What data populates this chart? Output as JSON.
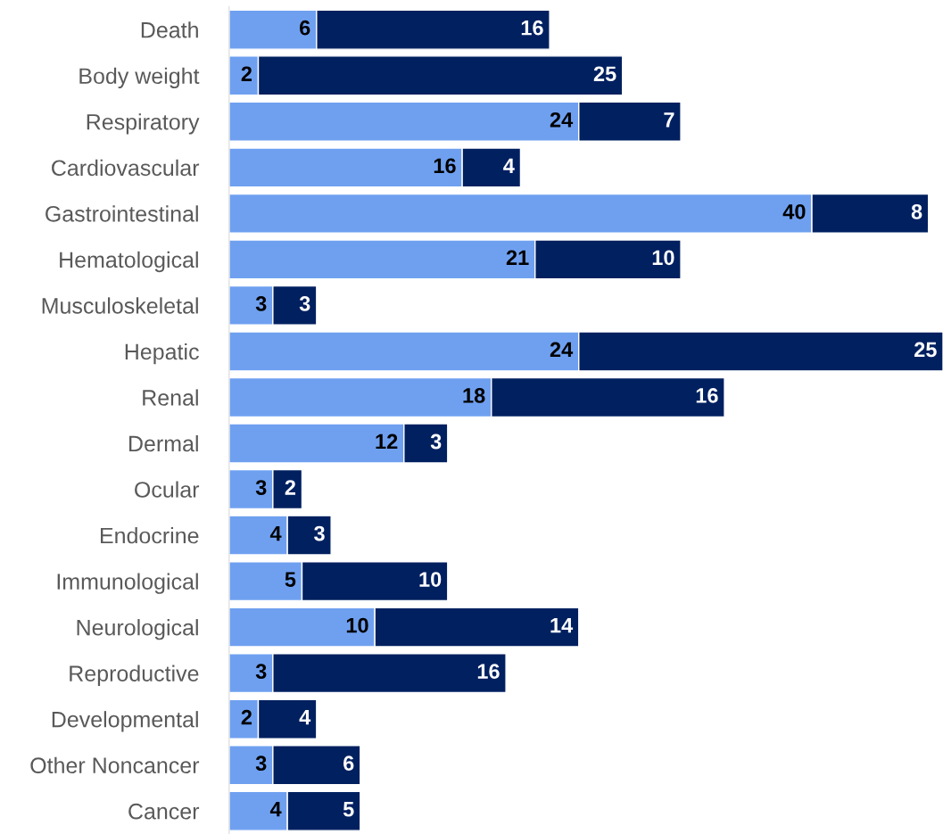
{
  "chart_data": {
    "type": "bar",
    "orientation": "horizontal",
    "stacked": true,
    "data_labels": true,
    "grid": false,
    "legend": false,
    "categories": [
      "Death",
      "Body weight",
      "Respiratory",
      "Cardiovascular",
      "Gastrointestinal",
      "Hematological",
      "Musculoskeletal",
      "Hepatic",
      "Renal",
      "Dermal",
      "Ocular",
      "Endocrine",
      "Immunological",
      "Neurological",
      "Reproductive",
      "Developmental",
      "Other Noncancer",
      "Cancer"
    ],
    "series": [
      {
        "color": "#6fa0f0",
        "values": [
          6,
          2,
          24,
          16,
          40,
          21,
          3,
          24,
          18,
          12,
          3,
          4,
          5,
          10,
          3,
          2,
          3,
          4
        ]
      },
      {
        "color": "#002060",
        "values": [
          16,
          25,
          7,
          4,
          8,
          10,
          3,
          25,
          16,
          3,
          2,
          3,
          10,
          14,
          16,
          4,
          6,
          5
        ]
      }
    ]
  }
}
